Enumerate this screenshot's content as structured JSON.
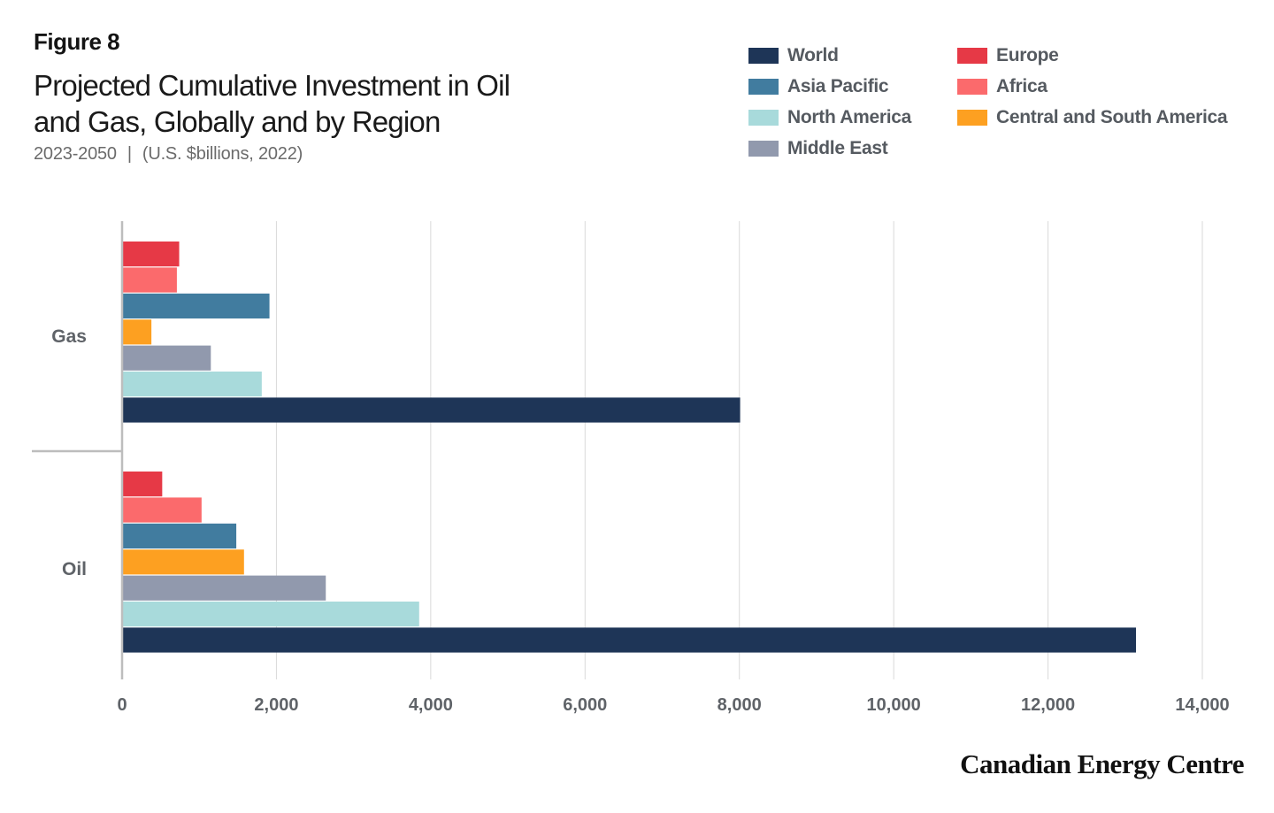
{
  "header": {
    "figure_label": "Figure 8",
    "title": "Projected Cumulative Investment in Oil and Gas, Globally and by Region",
    "subtitle_years": "2023-2050",
    "subtitle_separator": "|",
    "subtitle_units": "(U.S. $billions, 2022)"
  },
  "brand": "Canadian Energy Centre",
  "chart_data": {
    "type": "bar",
    "orientation": "horizontal",
    "categories": [
      "Gas",
      "Oil"
    ],
    "xlim": [
      0,
      14000
    ],
    "x_ticks": [
      0,
      2000,
      4000,
      6000,
      8000,
      10000,
      12000,
      14000
    ],
    "x_tick_labels": [
      "0",
      "2,000",
      "4,000",
      "6,000",
      "8,000",
      "10,000",
      "12,000",
      "14,000"
    ],
    "grid": true,
    "legend_position": "top-right",
    "series": [
      {
        "name": "Europe",
        "color": "#e63946",
        "values": [
          740,
          520
        ]
      },
      {
        "name": "Africa",
        "color": "#fb6a6c",
        "values": [
          710,
          1030
        ]
      },
      {
        "name": "Asia Pacific",
        "color": "#417c9f",
        "values": [
          1910,
          1480
        ]
      },
      {
        "name": "Central and South America",
        "color": "#fda021",
        "values": [
          380,
          1580
        ]
      },
      {
        "name": "Middle East",
        "color": "#9199ad",
        "values": [
          1150,
          2640
        ]
      },
      {
        "name": "North America",
        "color": "#a8dadb",
        "values": [
          1810,
          3850
        ]
      },
      {
        "name": "World",
        "color": "#1e3557",
        "values": [
          8010,
          13140
        ]
      }
    ],
    "legend_order": [
      "World",
      "Asia Pacific",
      "North America",
      "Middle East",
      "Europe",
      "Africa",
      "Central and South America"
    ]
  }
}
